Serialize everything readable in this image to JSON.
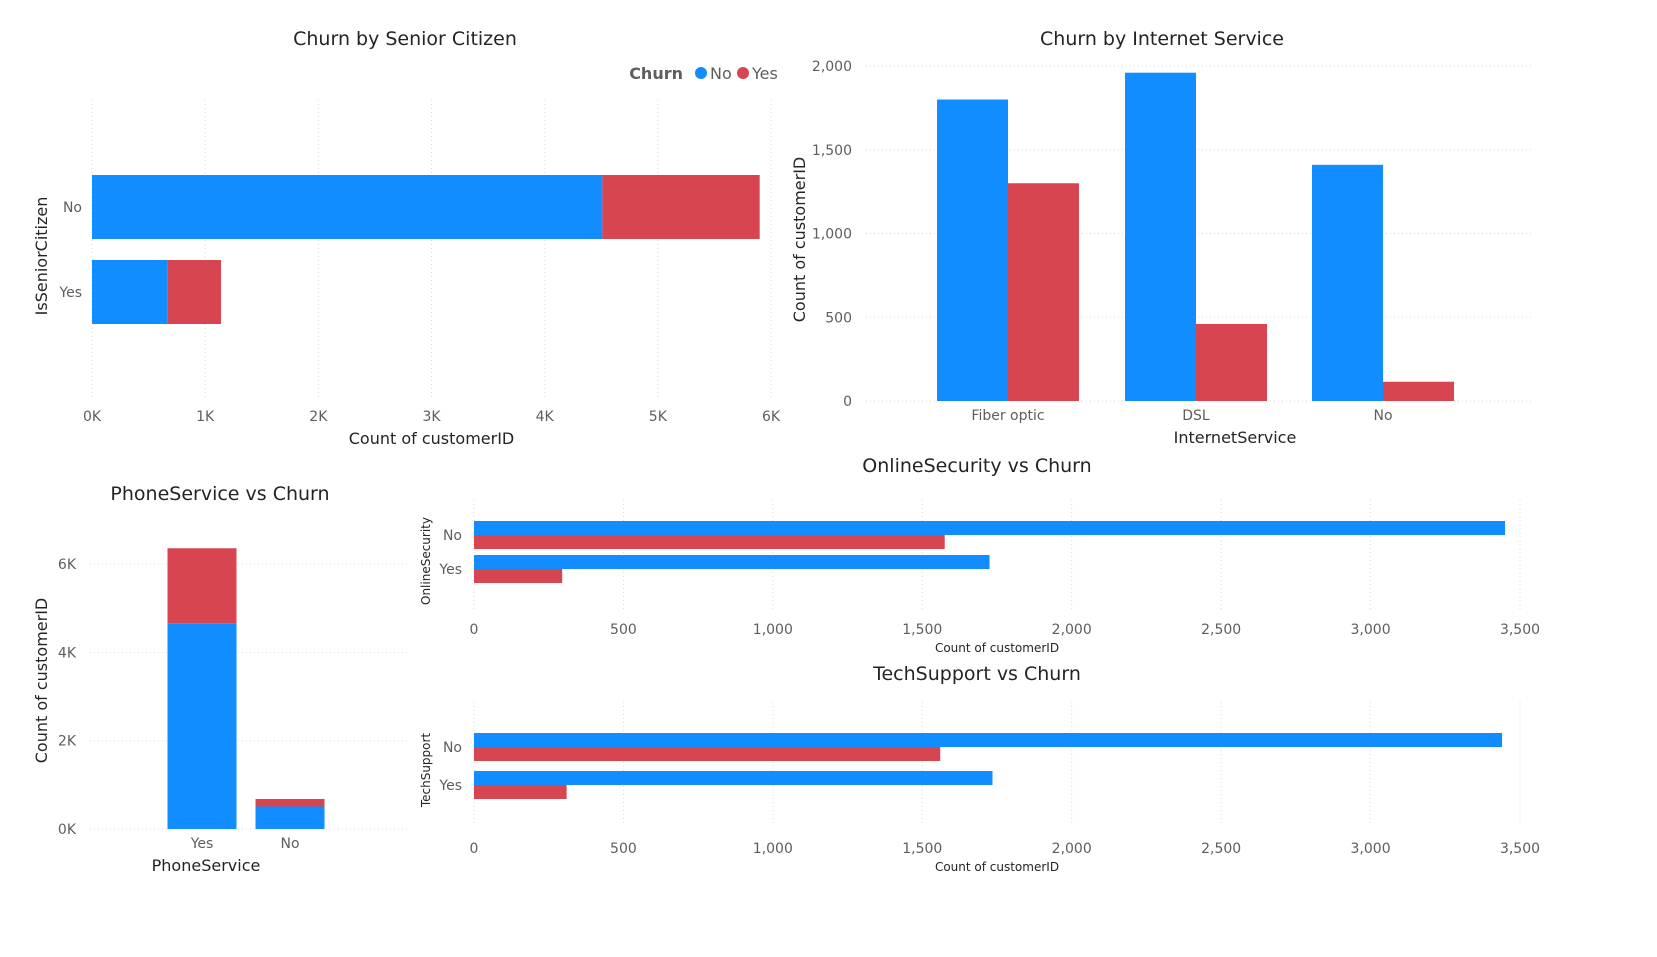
{
  "colors": {
    "No": "#118dff",
    "Yes": "#d64550"
  },
  "legend": {
    "title": "Churn",
    "items": [
      "No",
      "Yes"
    ]
  },
  "chart_data": [
    {
      "id": "senior",
      "type": "bar",
      "orientation": "horizontal",
      "stacked": true,
      "title": "Churn by Senior Citizen",
      "xlabel": "Count of customerID",
      "ylabel": "IsSeniorCitizen",
      "categories": [
        "No",
        "Yes"
      ],
      "series": [
        {
          "name": "No",
          "values": [
            4510,
            670
          ]
        },
        {
          "name": "Yes",
          "values": [
            1390,
            470
          ]
        }
      ],
      "xlim": [
        0,
        6000
      ],
      "xticks": [
        0,
        1000,
        2000,
        3000,
        4000,
        5000,
        6000
      ],
      "xtick_labels": [
        "0K",
        "1K",
        "2K",
        "3K",
        "4K",
        "5K",
        "6K"
      ],
      "legend_position": "top-right",
      "grid": true
    },
    {
      "id": "internet",
      "type": "bar",
      "orientation": "vertical",
      "stacked": false,
      "title": "Churn by Internet Service",
      "xlabel": "InternetService",
      "ylabel": "Count of customerID",
      "categories": [
        "Fiber optic",
        "DSL",
        "No"
      ],
      "series": [
        {
          "name": "No",
          "values": [
            1800,
            1960,
            1410
          ]
        },
        {
          "name": "Yes",
          "values": [
            1300,
            460,
            115
          ]
        }
      ],
      "ylim": [
        0,
        2000
      ],
      "yticks": [
        0,
        500,
        1000,
        1500,
        2000
      ],
      "ytick_labels": [
        "0",
        "500",
        "1,000",
        "1,500",
        "2,000"
      ],
      "grid": true
    },
    {
      "id": "phone",
      "type": "bar",
      "orientation": "vertical",
      "stacked": true,
      "title": "PhoneService vs Churn",
      "xlabel": "PhoneService",
      "ylabel": "Count of customerID",
      "categories": [
        "Yes",
        "No"
      ],
      "series": [
        {
          "name": "No",
          "values": [
            4660,
            510
          ]
        },
        {
          "name": "Yes",
          "values": [
            1700,
            170
          ]
        }
      ],
      "ylim": [
        0,
        7000
      ],
      "yticks": [
        0,
        2000,
        4000,
        6000
      ],
      "ytick_labels": [
        "0K",
        "2K",
        "4K",
        "6K"
      ],
      "grid": true
    },
    {
      "id": "security",
      "type": "bar",
      "orientation": "horizontal",
      "stacked": false,
      "title": "OnlineSecurity vs Churn",
      "xlabel": "Count of customerID",
      "ylabel": "OnlineSecurity",
      "categories": [
        "No",
        "Yes"
      ],
      "series": [
        {
          "name": "No",
          "values": [
            3450,
            1725
          ]
        },
        {
          "name": "Yes",
          "values": [
            1575,
            295
          ]
        }
      ],
      "xlim": [
        0,
        3500
      ],
      "xticks": [
        0,
        500,
        1000,
        1500,
        2000,
        2500,
        3000,
        3500
      ],
      "xtick_labels": [
        "0",
        "500",
        "1,000",
        "1,500",
        "2,000",
        "2,500",
        "3,000",
        "3,500"
      ],
      "grid": true
    },
    {
      "id": "techsupport",
      "type": "bar",
      "orientation": "horizontal",
      "stacked": false,
      "title": "TechSupport vs Churn",
      "xlabel": "Count of customerID",
      "ylabel": "TechSupport",
      "categories": [
        "No",
        "Yes"
      ],
      "series": [
        {
          "name": "No",
          "values": [
            3440,
            1735
          ]
        },
        {
          "name": "Yes",
          "values": [
            1560,
            310
          ]
        }
      ],
      "xlim": [
        0,
        3500
      ],
      "xticks": [
        0,
        500,
        1000,
        1500,
        2000,
        2500,
        3000,
        3500
      ],
      "xtick_labels": [
        "0",
        "500",
        "1,000",
        "1,500",
        "2,000",
        "2,500",
        "3,000",
        "3,500"
      ],
      "grid": true
    }
  ]
}
